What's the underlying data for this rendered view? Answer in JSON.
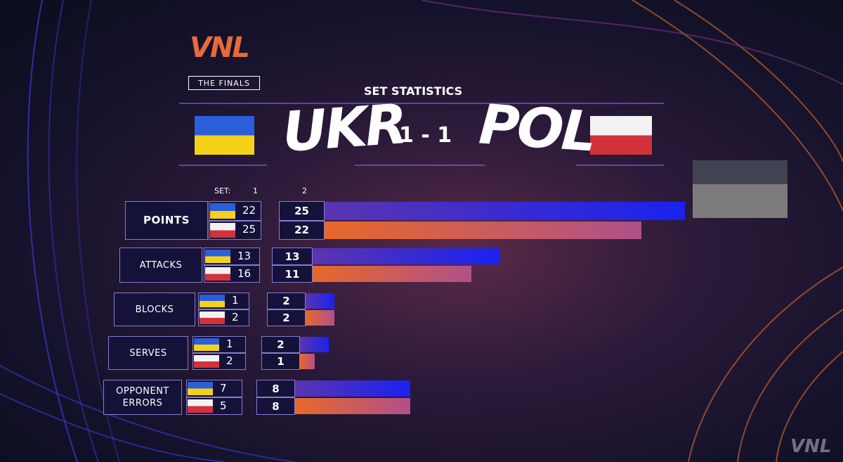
{
  "logo": {
    "brand": "VNL",
    "subtitle": "THE FINALS"
  },
  "title": "SET STATISTICS",
  "teams": [
    {
      "code": "UKR"
    },
    {
      "code": "POL"
    }
  ],
  "score": "1 - 1",
  "set_header": {
    "label": "SET:",
    "sets": [
      "1",
      "2"
    ]
  },
  "stats": [
    {
      "label": "POINTS",
      "set1": [
        22,
        25
      ],
      "set2": [
        25,
        22
      ]
    },
    {
      "label": "ATTACKS",
      "set1": [
        13,
        16
      ],
      "set2": [
        13,
        11
      ]
    },
    {
      "label": "BLOCKS",
      "set1": [
        1,
        2
      ],
      "set2": [
        2,
        2
      ]
    },
    {
      "label": "SERVES",
      "set1": [
        1,
        2
      ],
      "set2": [
        2,
        1
      ]
    },
    {
      "label": "OPPONENT ERRORS",
      "set1": [
        7,
        5
      ],
      "set2": [
        8,
        8
      ]
    }
  ],
  "watermark": "VNL"
}
